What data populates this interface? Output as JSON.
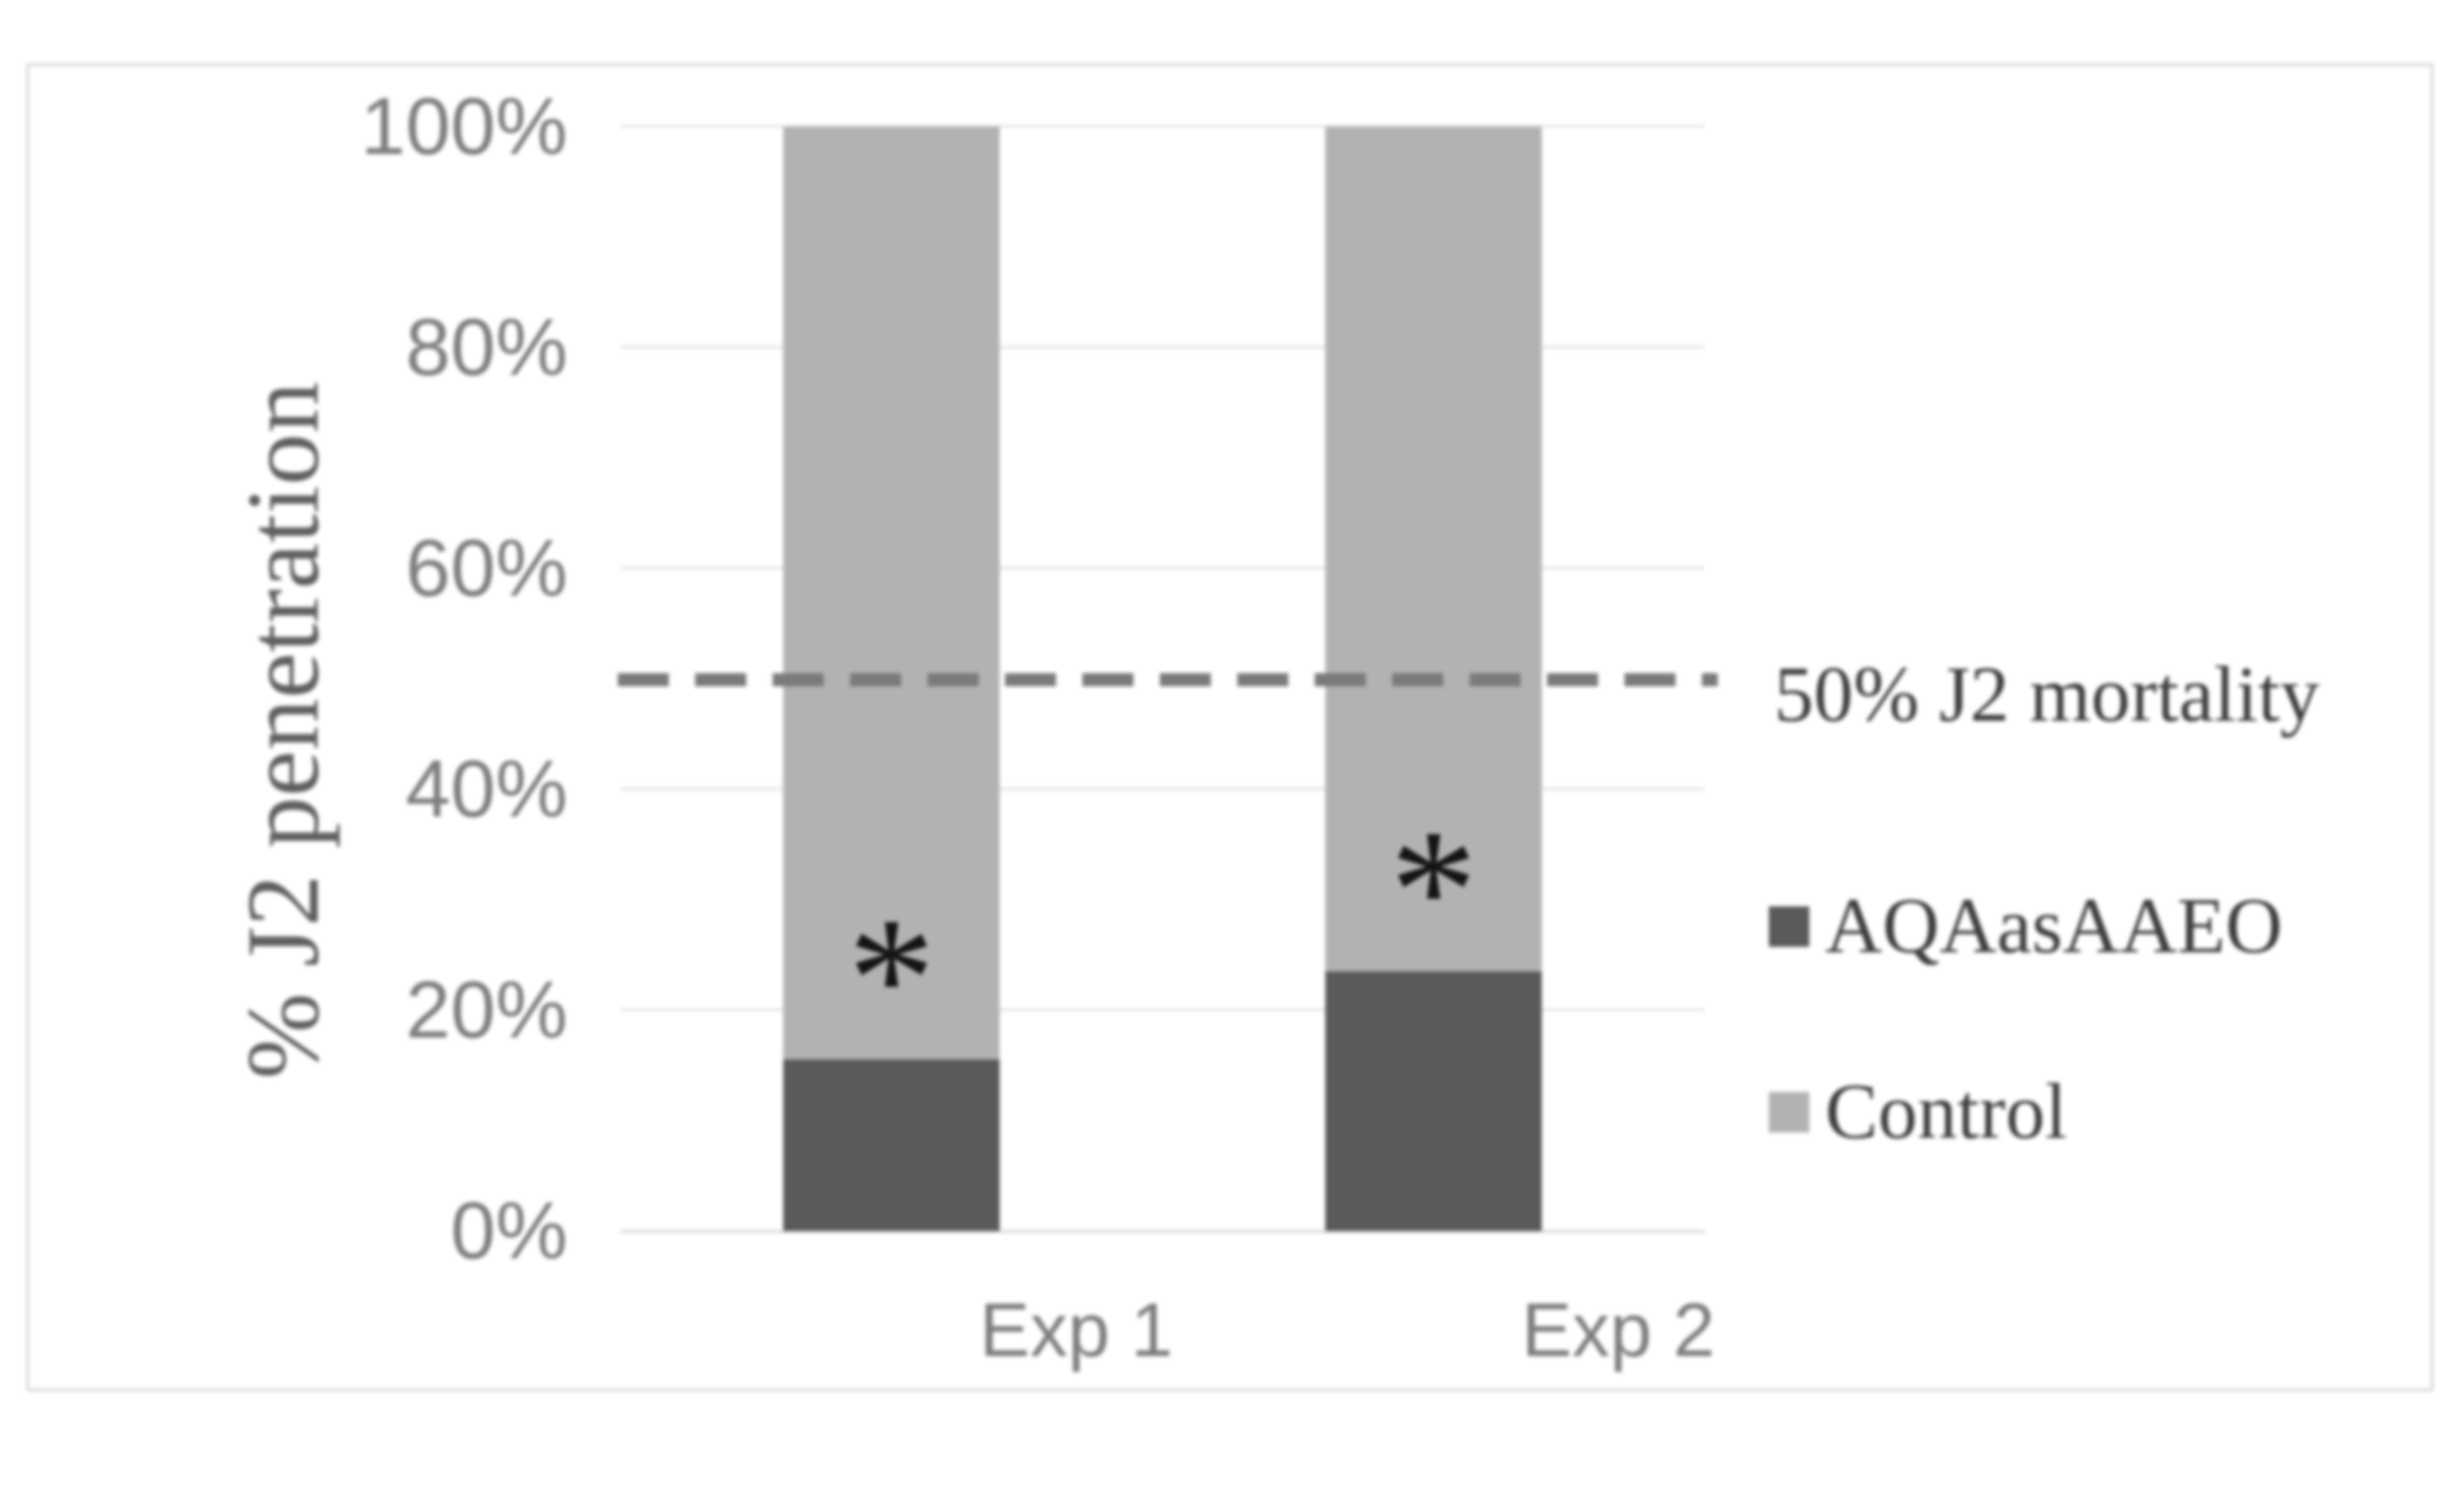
{
  "chart_data": {
    "type": "bar",
    "stacked": true,
    "title": "",
    "categories": [
      "Exp 1",
      "Exp 2"
    ],
    "series": [
      {
        "name": "AQAasAAEO",
        "color": "#5a5a5a",
        "values": [
          15.5,
          23.5
        ]
      },
      {
        "name": "Control",
        "color": "#b2b2b2",
        "values": [
          84.5,
          76.5
        ]
      }
    ],
    "ylabel": "% J2 penetration",
    "xlabel": "",
    "ylim": [
      0,
      100
    ],
    "ytick_labels": [
      "100%",
      "80%",
      "60%",
      "40%",
      "20%",
      "0%"
    ],
    "grid": true,
    "legend_position": "right",
    "reference_line": {
      "value": 50,
      "label": "50% J2 mortality",
      "style": "dashed",
      "color": "#7a7a7a"
    },
    "annotations": [
      {
        "category": "Exp 1",
        "text": "*",
        "y": 25
      },
      {
        "category": "Exp 2",
        "text": "*",
        "y": 33
      }
    ],
    "colors": {
      "gridline": "#e3e3e3",
      "axis_line": "#d6d6d6",
      "tick_text": "#7d7d7d",
      "legend_text": "#3d3d3d",
      "figure_border": "#d4d4d4",
      "asterisk": "#141414"
    }
  }
}
